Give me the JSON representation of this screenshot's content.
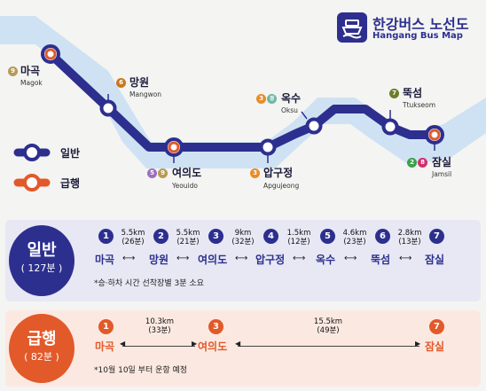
{
  "header": {
    "title_ko": "한강버스 노선도",
    "title_en": "Hangang Bus Map",
    "logo_icon": "boat-logo-icon"
  },
  "colors": {
    "navy": "#2d2f8f",
    "orange": "#e2592a",
    "river": "#cfe2f3",
    "panel_navy_bg": "#e7e8f4",
    "panel_orange_bg": "#fbe9e1"
  },
  "legend": {
    "regular_label": "일반",
    "express_label": "급행"
  },
  "stations": [
    {
      "id": "magok",
      "ko": "마곡",
      "en": "Magok",
      "badges": [
        {
          "n": "9",
          "color": "#b79b55"
        }
      ]
    },
    {
      "id": "mangwon",
      "ko": "망원",
      "en": "Mangwon",
      "badges": [
        {
          "n": "6",
          "color": "#c9781e"
        }
      ]
    },
    {
      "id": "yeouido",
      "ko": "여의도",
      "en": "Yeouido",
      "badges": [
        {
          "n": "5",
          "color": "#9d6fc0"
        },
        {
          "n": "9",
          "color": "#b79b55"
        }
      ]
    },
    {
      "id": "apgujeong",
      "ko": "압구정",
      "en": "Apgujeong",
      "badges": [
        {
          "n": "3",
          "color": "#e88c29"
        }
      ]
    },
    {
      "id": "oksu",
      "ko": "옥수",
      "en": "Oksu",
      "badges": [
        {
          "n": "3",
          "color": "#e88c29"
        },
        {
          "n": "경",
          "color": "#6fb7a2"
        }
      ]
    },
    {
      "id": "ttukseom",
      "ko": "뚝섬",
      "en": "Ttukseom",
      "badges": [
        {
          "n": "7",
          "color": "#6b7d2a"
        }
      ]
    },
    {
      "id": "jamsil",
      "ko": "잠실",
      "en": "Jamsil",
      "badges": [
        {
          "n": "2",
          "color": "#3aa14a"
        },
        {
          "n": "8",
          "color": "#d32e6b"
        }
      ]
    }
  ],
  "regular_panel": {
    "title": "일반",
    "total": "( 127분 )",
    "stops": [
      {
        "n": "1",
        "name": "마곡"
      },
      {
        "n": "2",
        "name": "망원"
      },
      {
        "n": "3",
        "name": "여의도"
      },
      {
        "n": "4",
        "name": "압구정"
      },
      {
        "n": "5",
        "name": "옥수"
      },
      {
        "n": "6",
        "name": "뚝섬"
      },
      {
        "n": "7",
        "name": "잠실"
      }
    ],
    "legs": [
      {
        "km": "5.5km",
        "min": "(26분)"
      },
      {
        "km": "5.5km",
        "min": "(21분)"
      },
      {
        "km": "9km",
        "min": "(32분)"
      },
      {
        "km": "1.5km",
        "min": "(12분)"
      },
      {
        "km": "4.6km",
        "min": "(23분)"
      },
      {
        "km": "2.8km",
        "min": "(13분)"
      }
    ],
    "note": "*승·하차 시간 선착장별 3분 소요"
  },
  "express_panel": {
    "title": "급행",
    "total": "( 82분 )",
    "stops": [
      {
        "n": "1",
        "name": "마곡"
      },
      {
        "n": "3",
        "name": "여의도"
      },
      {
        "n": "7",
        "name": "잠실"
      }
    ],
    "legs": [
      {
        "km": "10.3km",
        "min": "(33분)"
      },
      {
        "km": "15.5km",
        "min": "(49분)"
      }
    ],
    "note": "*10월 10일 부터 운항 예정"
  }
}
